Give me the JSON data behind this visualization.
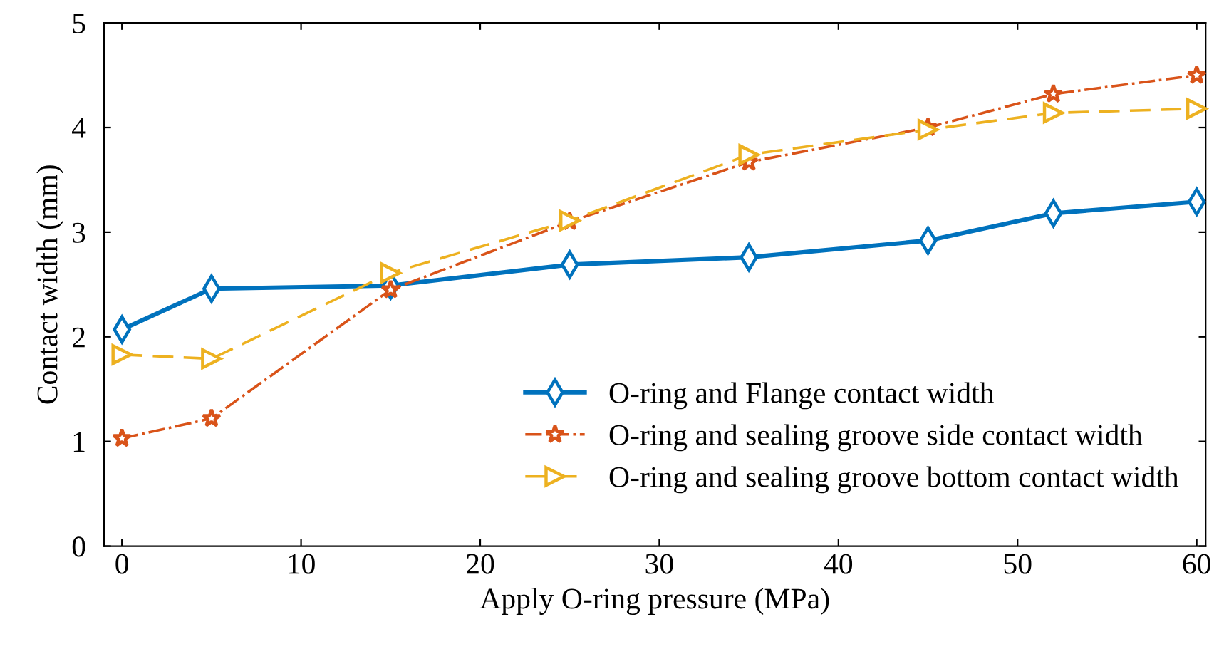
{
  "chart_data": {
    "type": "line",
    "xlabel": "Apply O-ring pressure (MPa)",
    "ylabel": "Contact width (mm)",
    "x": [
      0,
      5,
      15,
      25,
      35,
      45,
      52,
      60
    ],
    "series": [
      {
        "name": "O-ring and Flange contact width",
        "color": "#0072bd",
        "marker": "diamond",
        "line_style": "solid",
        "values": [
          2.07,
          2.46,
          2.49,
          2.69,
          2.76,
          2.92,
          3.18,
          3.29
        ]
      },
      {
        "name": "O-ring and sealing groove side contact width",
        "color": "#d95319",
        "marker": "star",
        "line_style": "dashdot",
        "values": [
          1.03,
          1.22,
          2.45,
          3.1,
          3.67,
          4.0,
          4.32,
          4.5
        ]
      },
      {
        "name": "O-ring and sealing groove bottom contact width",
        "color": "#edb120",
        "marker": "triangle",
        "line_style": "dashed",
        "values": [
          1.83,
          1.79,
          2.61,
          3.11,
          3.74,
          3.98,
          4.14,
          4.18
        ]
      }
    ],
    "xlim": [
      -1,
      60.5
    ],
    "ylim": [
      0,
      5
    ],
    "xticks": [
      0,
      10,
      20,
      30,
      40,
      50,
      60
    ],
    "yticks": [
      0,
      1,
      2,
      3,
      4,
      5
    ],
    "grid": false,
    "legend": "bottom right"
  }
}
